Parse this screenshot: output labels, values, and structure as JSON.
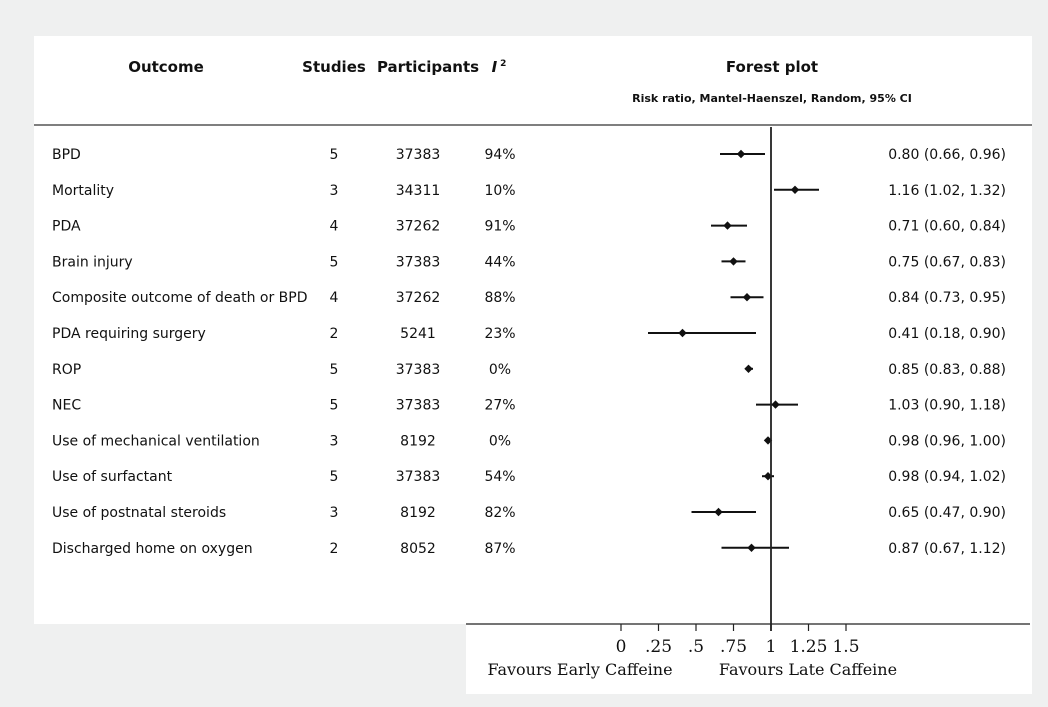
{
  "columns": {
    "outcome": "Outcome",
    "studies": "Studies",
    "participants": "Participants",
    "i2_base": "I",
    "i2_sup": "2",
    "forest": "Forest plot",
    "method": "Risk ratio, Mantel-Haenszel, Random, 95% CI"
  },
  "favours": {
    "left": "Favours Early Caffeine",
    "right": "Favours Late Caffeine"
  },
  "chart_data": {
    "type": "forest",
    "axis": {
      "ticks": [
        0,
        0.25,
        0.5,
        0.75,
        1,
        1.25,
        1.5
      ],
      "tick_labels": [
        "0",
        ".25",
        ".5",
        ".75",
        "1",
        "1.25",
        "1.5"
      ],
      "reference": 1
    },
    "rows": [
      {
        "outcome": "BPD",
        "studies": "5",
        "participants": "37383",
        "i2": "94%",
        "rr": 0.8,
        "lo": 0.66,
        "hi": 0.96,
        "label": "0.80 (0.66, 0.96)"
      },
      {
        "outcome": "Mortality",
        "studies": "3",
        "participants": "34311",
        "i2": "10%",
        "rr": 1.16,
        "lo": 1.02,
        "hi": 1.32,
        "label": "1.16 (1.02, 1.32)"
      },
      {
        "outcome": "PDA",
        "studies": "4",
        "participants": "37262",
        "i2": "91%",
        "rr": 0.71,
        "lo": 0.6,
        "hi": 0.84,
        "label": "0.71 (0.60, 0.84)"
      },
      {
        "outcome": "Brain injury",
        "studies": "5",
        "participants": "37383",
        "i2": "44%",
        "rr": 0.75,
        "lo": 0.67,
        "hi": 0.83,
        "label": "0.75 (0.67, 0.83)"
      },
      {
        "outcome": "Composite outcome of death or BPD",
        "studies": "4",
        "participants": "37262",
        "i2": "88%",
        "rr": 0.84,
        "lo": 0.73,
        "hi": 0.95,
        "label": "0.84 (0.73, 0.95)"
      },
      {
        "outcome": "PDA requiring surgery",
        "studies": "2",
        "participants": "5241",
        "i2": "23%",
        "rr": 0.41,
        "lo": 0.18,
        "hi": 0.9,
        "label": "0.41 (0.18, 0.90)"
      },
      {
        "outcome": "ROP",
        "studies": "5",
        "participants": "37383",
        "i2": "0%",
        "rr": 0.85,
        "lo": 0.83,
        "hi": 0.88,
        "label": "0.85 (0.83, 0.88)"
      },
      {
        "outcome": "NEC",
        "studies": "5",
        "participants": "37383",
        "i2": "27%",
        "rr": 1.03,
        "lo": 0.9,
        "hi": 1.18,
        "label": "1.03 (0.90, 1.18)"
      },
      {
        "outcome": "Use of mechanical ventilation",
        "studies": "3",
        "participants": "8192",
        "i2": "0%",
        "rr": 0.98,
        "lo": 0.96,
        "hi": 1.0,
        "label": "0.98 (0.96, 1.00)"
      },
      {
        "outcome": "Use of surfactant",
        "studies": "5",
        "participants": "37383",
        "i2": "54%",
        "rr": 0.98,
        "lo": 0.94,
        "hi": 1.02,
        "label": "0.98 (0.94, 1.02)"
      },
      {
        "outcome": "Use of postnatal steroids",
        "studies": "3",
        "participants": "8192",
        "i2": "82%",
        "rr": 0.65,
        "lo": 0.47,
        "hi": 0.9,
        "label": "0.65 (0.47, 0.90)"
      },
      {
        "outcome": "Discharged home on oxygen",
        "studies": "2",
        "participants": "8052",
        "i2": "87%",
        "rr": 0.87,
        "lo": 0.67,
        "hi": 1.12,
        "label": "0.87 (0.67, 1.12)"
      }
    ]
  }
}
